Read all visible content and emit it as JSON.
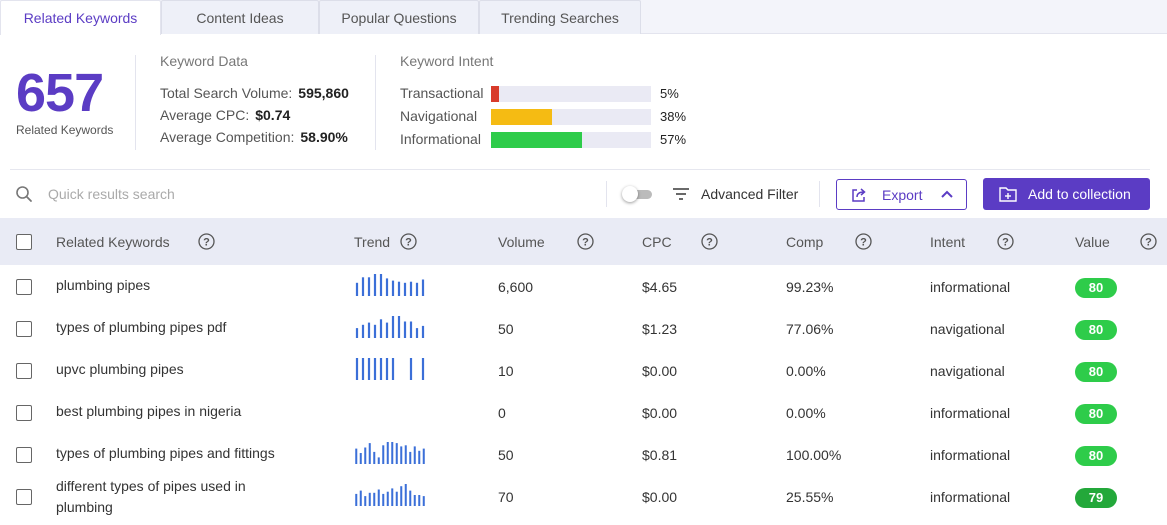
{
  "colors": {
    "accent": "#5b3cc4",
    "transactional": "#d83b2b",
    "navigational": "#f5bb13",
    "informational": "#2ecc4a",
    "trend_bar": "#3b6fd8",
    "value_pill": "#2ecc4a",
    "value_pill_dark": "#23a83a"
  },
  "tabs": [
    {
      "label": "Related Keywords",
      "active": true
    },
    {
      "label": "Content Ideas",
      "active": false
    },
    {
      "label": "Popular Questions",
      "active": false
    },
    {
      "label": "Trending Searches",
      "active": false
    }
  ],
  "summary": {
    "count": "657",
    "count_label": "Related Keywords",
    "keyword_data": {
      "title": "Keyword Data",
      "total_volume_label": "Total Search Volume:",
      "total_volume": "595,860",
      "avg_cpc_label": "Average CPC:",
      "avg_cpc": "$0.74",
      "avg_comp_label": "Average Competition:",
      "avg_comp": "58.90%"
    },
    "intent": {
      "title": "Keyword Intent",
      "items": [
        {
          "label": "Transactional",
          "pct": "5%",
          "fraction": 0.05,
          "color": "#d83b2b"
        },
        {
          "label": "Navigational",
          "pct": "38%",
          "fraction": 0.38,
          "color": "#f5bb13"
        },
        {
          "label": "Informational",
          "pct": "57%",
          "fraction": 0.57,
          "color": "#2ecc4a"
        }
      ]
    }
  },
  "toolbar": {
    "search_placeholder": "Quick results search",
    "advanced_filter": "Advanced Filter",
    "export": "Export",
    "add_to_collection": "Add to collection"
  },
  "table": {
    "headers": {
      "keyword": "Related Keywords",
      "trend": "Trend",
      "volume": "Volume",
      "cpc": "CPC",
      "comp": "Comp",
      "intent": "Intent",
      "value": "Value"
    },
    "rows": [
      {
        "keyword": "plumbing pipes",
        "volume": "6,600",
        "cpc": "$4.65",
        "comp": "99.23%",
        "intent": "informational",
        "value": "80",
        "trend": [
          0.6,
          0.85,
          0.85,
          1.0,
          1.0,
          0.8,
          0.7,
          0.65,
          0.6,
          0.65,
          0.6,
          0.75
        ]
      },
      {
        "keyword": "types of plumbing pipes pdf",
        "volume": "50",
        "cpc": "$1.23",
        "comp": "77.06%",
        "intent": "navigational",
        "value": "80",
        "trend": [
          0.45,
          0.6,
          0.7,
          0.6,
          0.85,
          0.7,
          1.0,
          1.0,
          0.75,
          0.75,
          0.45,
          0.55
        ]
      },
      {
        "keyword": "upvc plumbing pipes",
        "volume": "10",
        "cpc": "$0.00",
        "comp": "0.00%",
        "intent": "navigational",
        "value": "80",
        "trend": [
          1.0,
          1.0,
          1.0,
          1.0,
          1.0,
          1.0,
          1.0,
          0,
          0,
          1.0,
          0,
          1.0
        ]
      },
      {
        "keyword": "best plumbing pipes in nigeria",
        "volume": "0",
        "cpc": "$0.00",
        "comp": "0.00%",
        "intent": "informational",
        "value": "80",
        "trend": []
      },
      {
        "keyword": "types of plumbing pipes and fittings",
        "volume": "50",
        "cpc": "$0.81",
        "comp": "100.00%",
        "intent": "informational",
        "value": "80",
        "trend": [
          0.7,
          0.5,
          0.75,
          0.95,
          0.55,
          0.3,
          0.85,
          1.0,
          1.0,
          0.95,
          0.8,
          0.85,
          0.55,
          0.8,
          0.6,
          0.7
        ]
      },
      {
        "keyword": "different types of pipes used in plumbing",
        "volume": "70",
        "cpc": "$0.00",
        "comp": "25.55%",
        "intent": "informational",
        "value": "79",
        "trend": [
          0.55,
          0.7,
          0.45,
          0.6,
          0.6,
          0.75,
          0.55,
          0.65,
          0.8,
          0.65,
          0.9,
          1.0,
          0.7,
          0.5,
          0.5,
          0.45
        ]
      }
    ]
  }
}
